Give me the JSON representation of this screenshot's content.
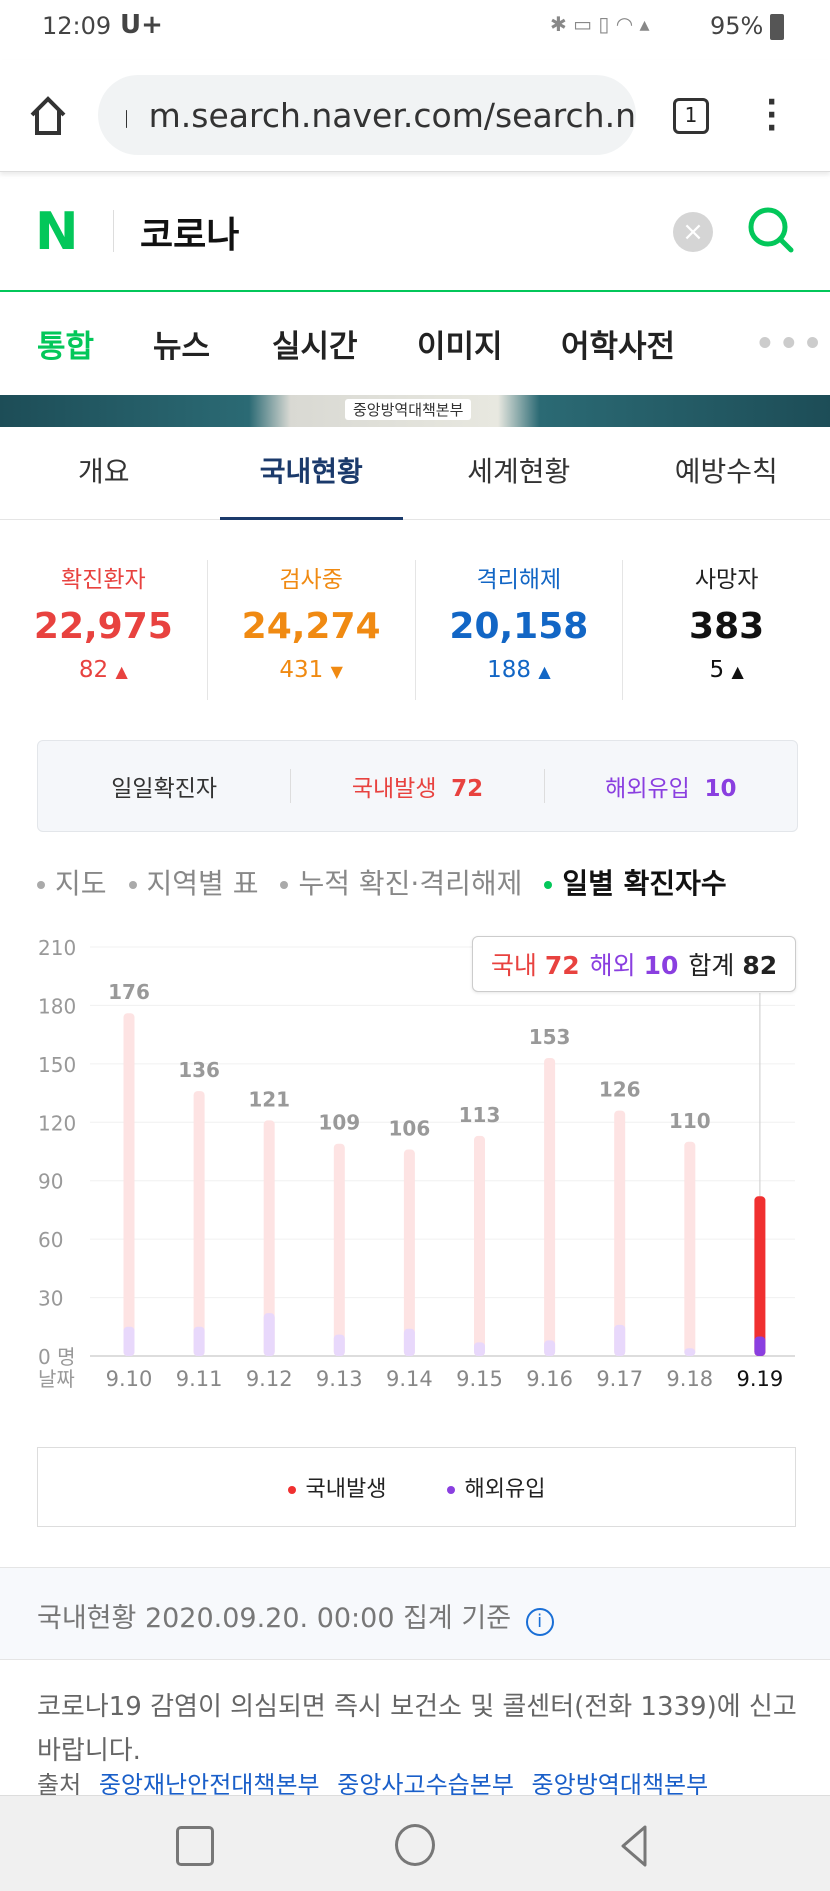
{
  "status_bar": {
    "time": "12:09",
    "carrier": "U+",
    "battery": "95%"
  },
  "browser": {
    "url": "m.search.naver.com/search.n",
    "tab_count": "1"
  },
  "search": {
    "logo": "N",
    "query": "코로나"
  },
  "tabs": [
    "통합",
    "뉴스",
    "실시간",
    "이미지",
    "어학사전"
  ],
  "banner_text": "중앙방역대책본부",
  "sub_tabs": [
    "개요",
    "국내현황",
    "세계현황",
    "예방수칙"
  ],
  "stats": [
    {
      "label": "확진환자",
      "value": "22,975",
      "delta": "82",
      "dir": "up",
      "color": "#e8423f"
    },
    {
      "label": "검사중",
      "value": "24,274",
      "delta": "431",
      "dir": "down",
      "color": "#f08a12"
    },
    {
      "label": "격리해제",
      "value": "20,158",
      "delta": "188",
      "dir": "up",
      "color": "#1266c5"
    },
    {
      "label": "사망자",
      "value": "383",
      "delta": "5",
      "dir": "up",
      "color": "#111111"
    }
  ],
  "daily": {
    "label": "일일확진자",
    "domestic_label": "국내발생",
    "domestic": "72",
    "overseas_label": "해외유입",
    "overseas": "10"
  },
  "filters": [
    "지도",
    "지역별 표",
    "누적 확진·격리해제",
    "일별 확진자수"
  ],
  "tooltip": {
    "domestic_label": "국내",
    "domestic": "72",
    "overseas_label": "해외",
    "overseas": "10",
    "total_label": "합계",
    "total": "82"
  },
  "chart_data": {
    "type": "bar",
    "stacked": true,
    "categories": [
      "9.10",
      "9.11",
      "9.12",
      "9.13",
      "9.14",
      "9.15",
      "9.16",
      "9.17",
      "9.18",
      "9.19"
    ],
    "series": [
      {
        "name": "국내발생",
        "values": [
          161,
          121,
          99,
          98,
          92,
          106,
          145,
          110,
          106,
          72
        ],
        "color": "#f03030"
      },
      {
        "name": "해외유입",
        "values": [
          15,
          15,
          22,
          11,
          14,
          7,
          8,
          16,
          4,
          10
        ],
        "color": "#8a3fe0"
      }
    ],
    "totals": [
      "176",
      "136",
      "121",
      "109",
      "106",
      "113",
      "153",
      "126",
      "110",
      ""
    ],
    "yticks": [
      "0 명",
      "30",
      "60",
      "90",
      "120",
      "150",
      "180",
      "210"
    ],
    "ylim": [
      0,
      210
    ],
    "xlabel": "날짜",
    "selected": "9.19"
  },
  "legend": [
    "국내발생",
    "해외유입"
  ],
  "basis": "국내현황 2020.09.20. 00:00 집계 기준",
  "notice": "코로나19 감염이 의심되면 즉시 보건소 및 콜센터(전화 1339)에 신고바랍니다.",
  "source": {
    "label": "출처",
    "links": [
      "중앙재난안전대책본부",
      "중앙사고수습본부",
      "중앙방역대책본부"
    ]
  }
}
